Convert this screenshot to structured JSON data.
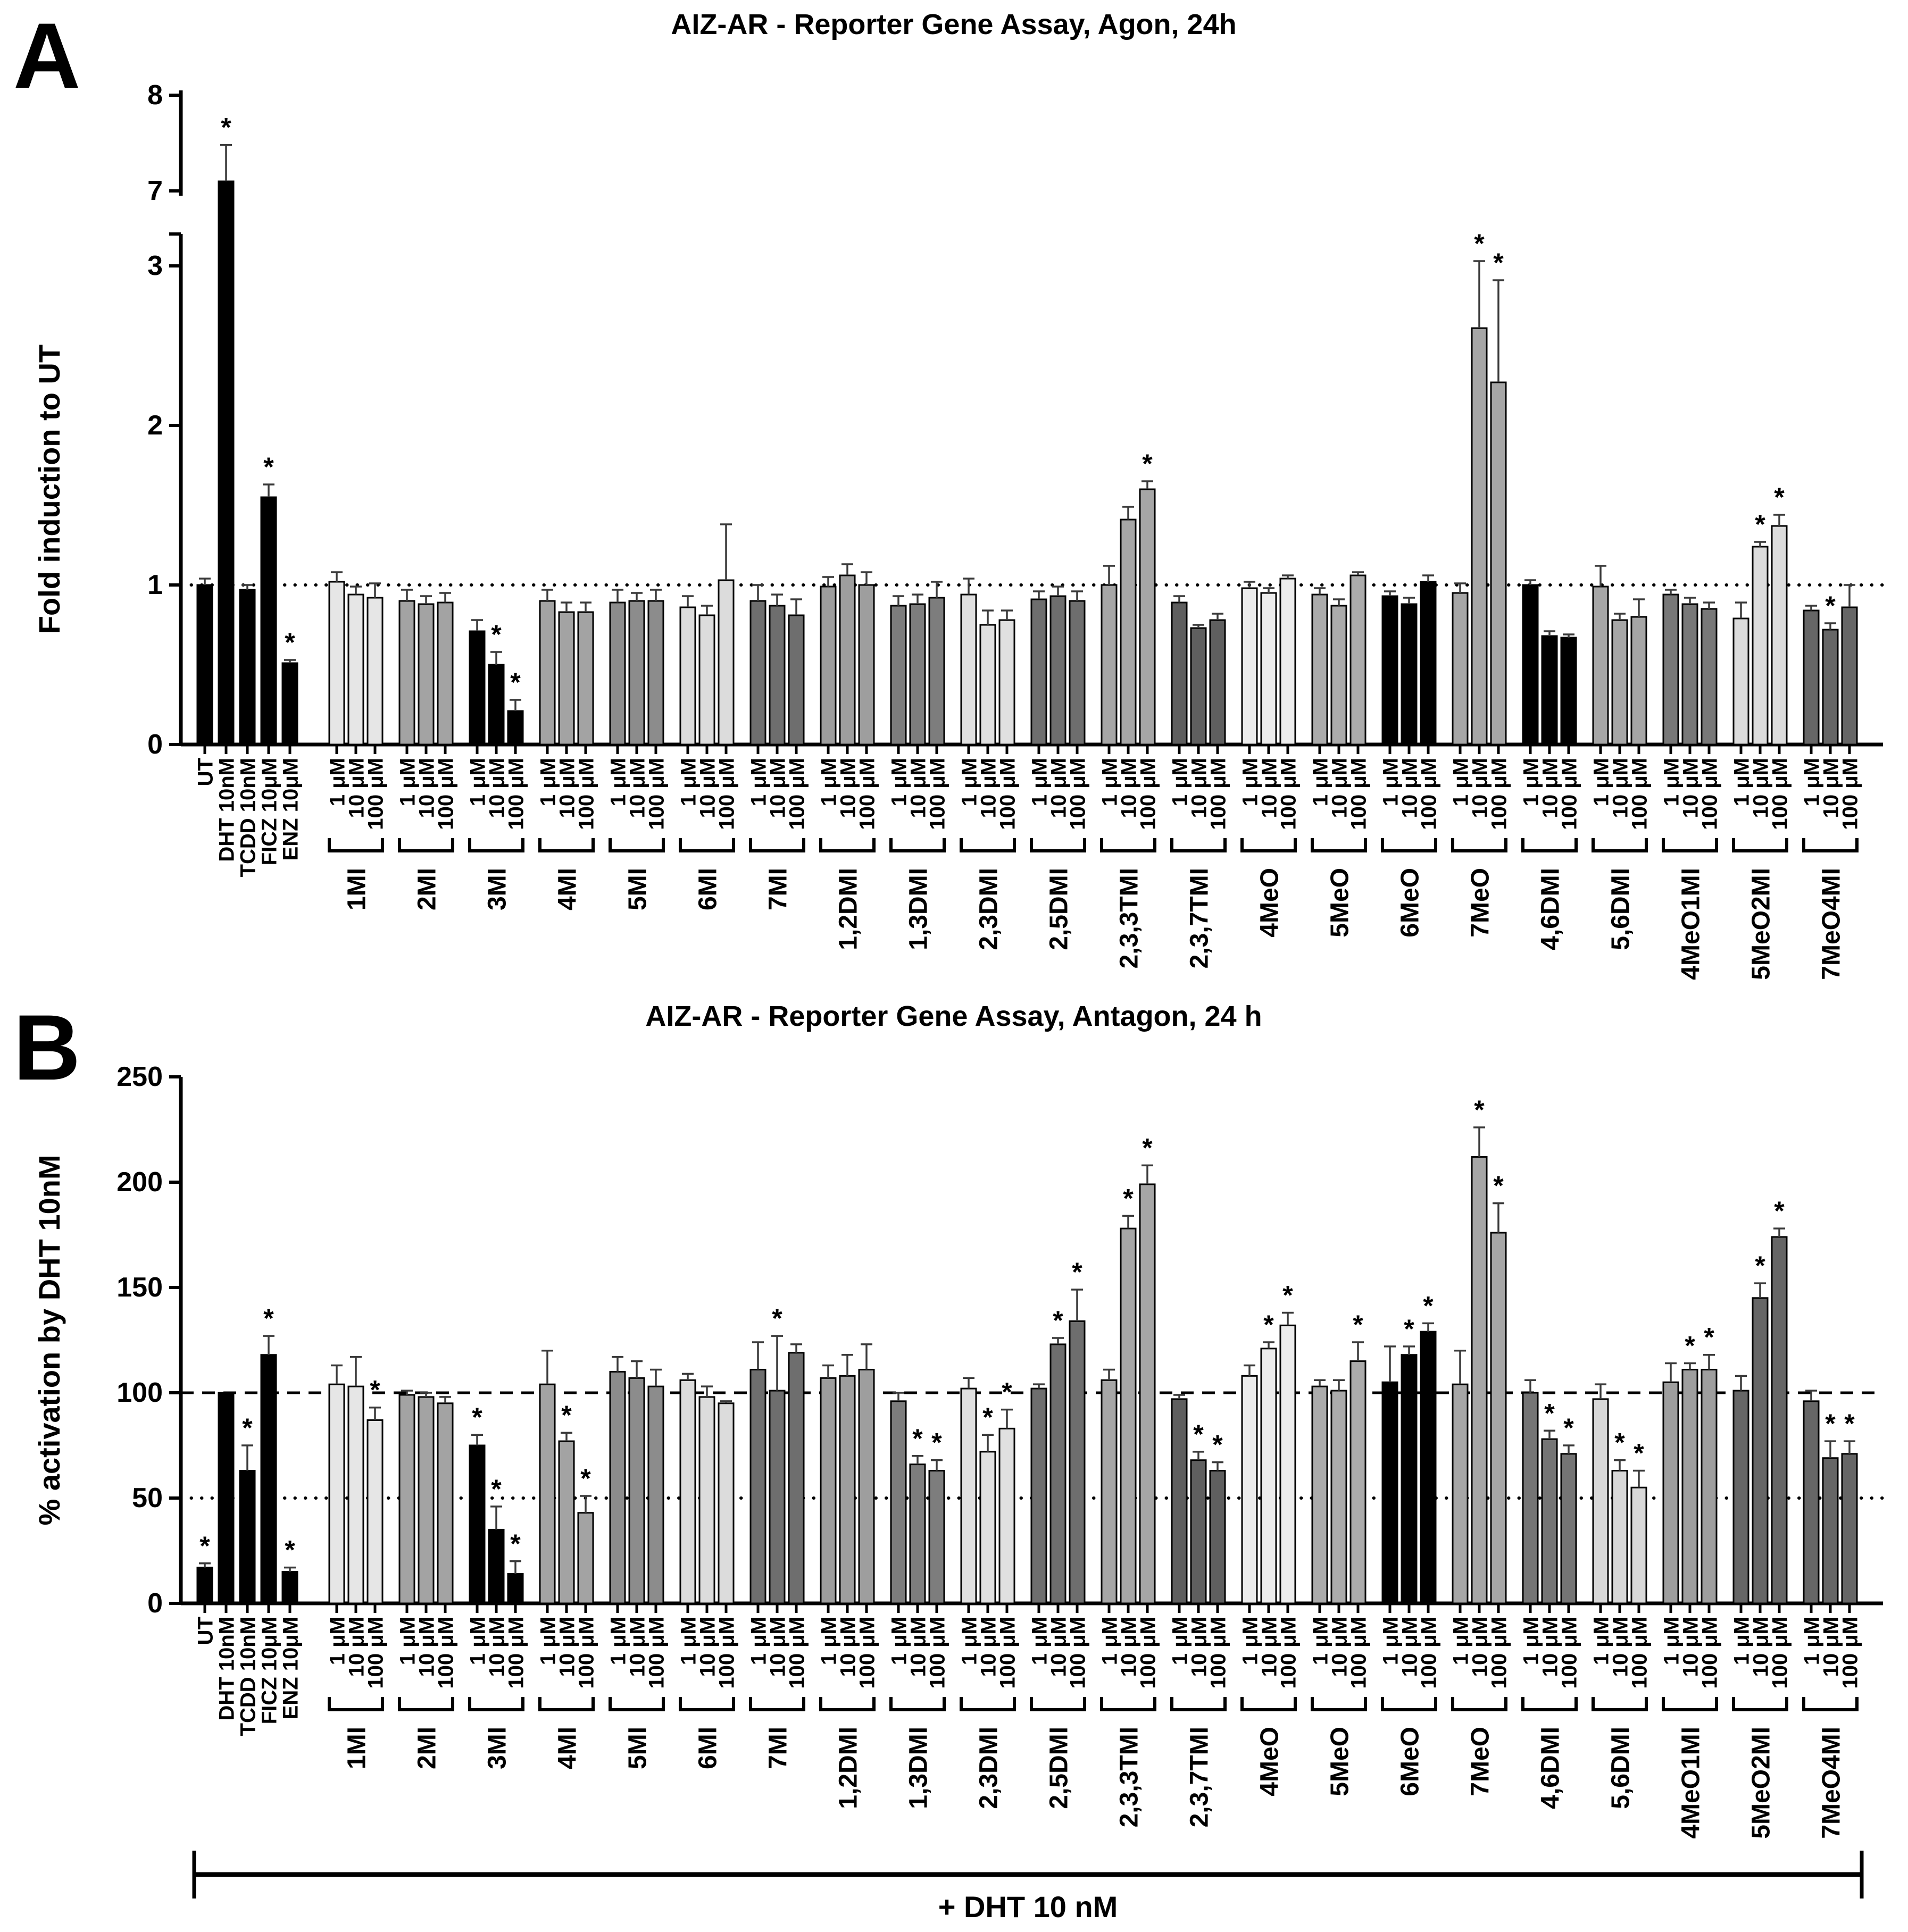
{
  "figure": {
    "panel_a_letter": "A",
    "panel_b_letter": "B",
    "dose_labels": [
      "1 μM",
      "10 μM",
      "100 μM"
    ],
    "bottom_bracket_label": "+ DHT 10 nM"
  },
  "chart_data": [
    {
      "type": "bar",
      "panel": "A",
      "title": "AIZ-AR - Reporter Gene Assay, Agon, 24h",
      "ylabel": "Fold induction to UT",
      "axis_break": true,
      "ylim_lower": [
        0,
        3.2
      ],
      "ylim_upper": [
        6.95,
        8.05
      ],
      "yticks": [
        0,
        1,
        2,
        3,
        7,
        8
      ],
      "reference_lines": [
        {
          "y": 1,
          "style": "dotted"
        }
      ],
      "controls": [
        {
          "label": "UT",
          "value": 1.0,
          "err": 0.04,
          "sig": false
        },
        {
          "label": "DHT 10nM",
          "value": 7.1,
          "err": 0.38,
          "sig": true
        },
        {
          "label": "TCDD 10nM",
          "value": 0.97,
          "err": 0.03,
          "sig": false
        },
        {
          "label": "FICZ 10μM",
          "value": 1.55,
          "err": 0.08,
          "sig": true
        },
        {
          "label": "ENZ 10μM",
          "value": 0.51,
          "err": 0.02,
          "sig": true
        }
      ],
      "groups": [
        {
          "name": "1MI",
          "color": "#e6e6e6",
          "values": [
            1.02,
            0.94,
            0.92
          ],
          "errs": [
            0.06,
            0.05,
            0.09
          ],
          "sig": [
            false,
            false,
            false
          ]
        },
        {
          "name": "2MI",
          "color": "#a3a3a3",
          "values": [
            0.9,
            0.88,
            0.89
          ],
          "errs": [
            0.07,
            0.05,
            0.06
          ],
          "sig": [
            false,
            false,
            false
          ]
        },
        {
          "name": "3MI",
          "color": "#000000",
          "values": [
            0.71,
            0.5,
            0.21
          ],
          "errs": [
            0.07,
            0.08,
            0.07
          ],
          "sig": [
            false,
            true,
            true
          ]
        },
        {
          "name": "4MI",
          "color": "#a3a3a3",
          "values": [
            0.9,
            0.83,
            0.83
          ],
          "errs": [
            0.07,
            0.06,
            0.06
          ],
          "sig": [
            false,
            false,
            false
          ]
        },
        {
          "name": "5MI",
          "color": "#8c8c8c",
          "values": [
            0.89,
            0.9,
            0.9
          ],
          "errs": [
            0.08,
            0.05,
            0.07
          ],
          "sig": [
            false,
            false,
            false
          ]
        },
        {
          "name": "6MI",
          "color": "#dcdcdc",
          "values": [
            0.86,
            0.81,
            1.03
          ],
          "errs": [
            0.07,
            0.06,
            0.35
          ],
          "sig": [
            false,
            false,
            false
          ]
        },
        {
          "name": "7MI",
          "color": "#6e6e6e",
          "values": [
            0.9,
            0.87,
            0.81
          ],
          "errs": [
            0.1,
            0.07,
            0.1
          ],
          "sig": [
            false,
            false,
            false
          ]
        },
        {
          "name": "1,2DMI",
          "color": "#9e9e9e",
          "values": [
            0.99,
            1.06,
            1.0
          ],
          "errs": [
            0.06,
            0.07,
            0.08
          ],
          "sig": [
            false,
            false,
            false
          ]
        },
        {
          "name": "1,3DMI",
          "color": "#7d7d7d",
          "values": [
            0.87,
            0.88,
            0.92
          ],
          "errs": [
            0.06,
            0.06,
            0.1
          ],
          "sig": [
            false,
            false,
            false
          ]
        },
        {
          "name": "2,3DMI",
          "color": "#e0e0e0",
          "values": [
            0.94,
            0.75,
            0.78
          ],
          "errs": [
            0.1,
            0.09,
            0.06
          ],
          "sig": [
            false,
            false,
            false
          ]
        },
        {
          "name": "2,5DMI",
          "color": "#6e6e6e",
          "values": [
            0.91,
            0.93,
            0.9
          ],
          "errs": [
            0.05,
            0.06,
            0.06
          ],
          "sig": [
            false,
            false,
            false
          ]
        },
        {
          "name": "2,3,3TMI",
          "color": "#a6a6a6",
          "values": [
            1.0,
            1.41,
            1.6
          ],
          "errs": [
            0.12,
            0.08,
            0.05
          ],
          "sig": [
            false,
            false,
            true
          ]
        },
        {
          "name": "2,3,7TMI",
          "color": "#5f5f5f",
          "values": [
            0.89,
            0.73,
            0.78
          ],
          "errs": [
            0.04,
            0.02,
            0.04
          ],
          "sig": [
            false,
            false,
            false
          ]
        },
        {
          "name": "4MeO",
          "color": "#ececec",
          "values": [
            0.98,
            0.95,
            1.04
          ],
          "errs": [
            0.04,
            0.03,
            0.02
          ],
          "sig": [
            false,
            false,
            false
          ]
        },
        {
          "name": "5MeO",
          "color": "#ababab",
          "values": [
            0.94,
            0.87,
            1.06
          ],
          "errs": [
            0.04,
            0.04,
            0.02
          ],
          "sig": [
            false,
            false,
            false
          ]
        },
        {
          "name": "6MeO",
          "color": "#000000",
          "values": [
            0.93,
            0.88,
            1.02
          ],
          "errs": [
            0.03,
            0.04,
            0.04
          ],
          "sig": [
            false,
            false,
            false
          ]
        },
        {
          "name": "7MeO",
          "color": "#a6a6a6",
          "values": [
            0.95,
            2.61,
            2.27
          ],
          "errs": [
            0.06,
            0.42,
            0.64
          ],
          "sig": [
            false,
            true,
            true
          ]
        },
        {
          "name": "4,6DMI",
          "color": "#000000",
          "values": [
            1.0,
            0.68,
            0.67
          ],
          "errs": [
            0.03,
            0.03,
            0.02
          ],
          "sig": [
            false,
            false,
            false
          ]
        },
        {
          "name": "5,6DMI",
          "color": "#a6a6a6",
          "values": [
            0.99,
            0.78,
            0.8
          ],
          "errs": [
            0.13,
            0.04,
            0.11
          ],
          "sig": [
            false,
            false,
            false
          ]
        },
        {
          "name": "4MeO1MI",
          "color": "#787878",
          "values": [
            0.94,
            0.88,
            0.85
          ],
          "errs": [
            0.03,
            0.04,
            0.04
          ],
          "sig": [
            false,
            false,
            false
          ]
        },
        {
          "name": "5MeO2MI",
          "color": "#dcdcdc",
          "values": [
            0.79,
            1.24,
            1.37
          ],
          "errs": [
            0.1,
            0.03,
            0.07
          ],
          "sig": [
            false,
            true,
            true
          ]
        },
        {
          "name": "7MeO4MI",
          "color": "#666666",
          "values": [
            0.84,
            0.72,
            0.86
          ],
          "errs": [
            0.03,
            0.04,
            0.14
          ],
          "sig": [
            false,
            true,
            false
          ]
        }
      ]
    },
    {
      "type": "bar",
      "panel": "B",
      "title": "AIZ-AR - Reporter Gene Assay, Antagon, 24 h",
      "ylabel": "% activation by DHT 10nM",
      "axis_break": false,
      "ylim": [
        0,
        250
      ],
      "yticks": [
        0,
        50,
        100,
        150,
        200,
        250
      ],
      "reference_lines": [
        {
          "y": 100,
          "style": "dashed"
        },
        {
          "y": 50,
          "style": "dotted"
        }
      ],
      "bottom_bracket_label": "+ DHT 10 nM",
      "controls": [
        {
          "label": "UT",
          "value": 17,
          "err": 2,
          "sig": true
        },
        {
          "label": "DHT 10nM",
          "value": 100,
          "err": 0,
          "sig": false
        },
        {
          "label": "TCDD 10nM",
          "value": 63,
          "err": 12,
          "sig": true
        },
        {
          "label": "FICZ 10μM",
          "value": 118,
          "err": 9,
          "sig": true
        },
        {
          "label": "ENZ 10μM",
          "value": 15,
          "err": 2,
          "sig": true
        }
      ],
      "groups": [
        {
          "name": "1MI",
          "color": "#e6e6e6",
          "values": [
            104,
            103,
            87
          ],
          "errs": [
            9,
            14,
            6
          ],
          "sig": [
            false,
            false,
            true
          ]
        },
        {
          "name": "2MI",
          "color": "#a3a3a3",
          "values": [
            99,
            98,
            95
          ],
          "errs": [
            2,
            2,
            3
          ],
          "sig": [
            false,
            false,
            false
          ]
        },
        {
          "name": "3MI",
          "color": "#000000",
          "values": [
            75,
            35,
            14
          ],
          "errs": [
            5,
            11,
            6
          ],
          "sig": [
            true,
            true,
            true
          ]
        },
        {
          "name": "4MI",
          "color": "#a3a3a3",
          "values": [
            104,
            77,
            43
          ],
          "errs": [
            16,
            4,
            8
          ],
          "sig": [
            false,
            true,
            true
          ]
        },
        {
          "name": "5MI",
          "color": "#8c8c8c",
          "values": [
            110,
            107,
            103
          ],
          "errs": [
            7,
            8,
            8
          ],
          "sig": [
            false,
            false,
            false
          ]
        },
        {
          "name": "6MI",
          "color": "#dcdcdc",
          "values": [
            106,
            98,
            95
          ],
          "errs": [
            3,
            5,
            1
          ],
          "sig": [
            false,
            false,
            false
          ]
        },
        {
          "name": "7MI",
          "color": "#6e6e6e",
          "values": [
            111,
            101,
            119
          ],
          "errs": [
            13,
            26,
            4
          ],
          "sig": [
            false,
            true,
            false
          ]
        },
        {
          "name": "1,2DMI",
          "color": "#9e9e9e",
          "values": [
            107,
            108,
            111
          ],
          "errs": [
            6,
            10,
            12
          ],
          "sig": [
            false,
            false,
            false
          ]
        },
        {
          "name": "1,3DMI",
          "color": "#7d7d7d",
          "values": [
            96,
            66,
            63
          ],
          "errs": [
            4,
            4,
            5
          ],
          "sig": [
            false,
            true,
            true
          ]
        },
        {
          "name": "2,3DMI",
          "color": "#e0e0e0",
          "values": [
            102,
            72,
            83
          ],
          "errs": [
            5,
            8,
            9
          ],
          "sig": [
            false,
            true,
            true
          ]
        },
        {
          "name": "2,5DMI",
          "color": "#6e6e6e",
          "values": [
            102,
            123,
            134
          ],
          "errs": [
            2,
            3,
            15
          ],
          "sig": [
            false,
            true,
            true
          ]
        },
        {
          "name": "2,3,3TMI",
          "color": "#a6a6a6",
          "values": [
            106,
            178,
            199
          ],
          "errs": [
            5,
            6,
            9
          ],
          "sig": [
            false,
            true,
            true
          ]
        },
        {
          "name": "2,3,7TMI",
          "color": "#5f5f5f",
          "values": [
            97,
            68,
            63
          ],
          "errs": [
            2,
            4,
            4
          ],
          "sig": [
            false,
            true,
            true
          ]
        },
        {
          "name": "4MeO",
          "color": "#ececec",
          "values": [
            108,
            121,
            132
          ],
          "errs": [
            5,
            3,
            6
          ],
          "sig": [
            false,
            true,
            true
          ]
        },
        {
          "name": "5MeO",
          "color": "#ababab",
          "values": [
            103,
            101,
            115
          ],
          "errs": [
            3,
            5,
            9
          ],
          "sig": [
            false,
            false,
            true
          ]
        },
        {
          "name": "6MeO",
          "color": "#000000",
          "values": [
            105,
            118,
            129
          ],
          "errs": [
            17,
            4,
            4
          ],
          "sig": [
            false,
            true,
            true
          ]
        },
        {
          "name": "7MeO",
          "color": "#a6a6a6",
          "values": [
            104,
            212,
            176
          ],
          "errs": [
            16,
            14,
            14
          ],
          "sig": [
            false,
            true,
            true
          ]
        },
        {
          "name": "4,6DMI",
          "color": "#757575",
          "values": [
            100,
            78,
            71
          ],
          "errs": [
            6,
            4,
            4
          ],
          "sig": [
            false,
            true,
            true
          ]
        },
        {
          "name": "5,6DMI",
          "color": "#d8d8d8",
          "values": [
            97,
            63,
            55
          ],
          "errs": [
            7,
            5,
            8
          ],
          "sig": [
            false,
            true,
            true
          ]
        },
        {
          "name": "4MeO1MI",
          "color": "#9e9e9e",
          "values": [
            105,
            111,
            111
          ],
          "errs": [
            9,
            3,
            7
          ],
          "sig": [
            false,
            true,
            true
          ]
        },
        {
          "name": "5MeO2MI",
          "color": "#666666",
          "values": [
            101,
            145,
            174
          ],
          "errs": [
            7,
            7,
            4
          ],
          "sig": [
            false,
            true,
            true
          ]
        },
        {
          "name": "7MeO4MI",
          "color": "#666666",
          "values": [
            96,
            69,
            71
          ],
          "errs": [
            5,
            8,
            6
          ],
          "sig": [
            false,
            true,
            true
          ]
        }
      ]
    }
  ]
}
